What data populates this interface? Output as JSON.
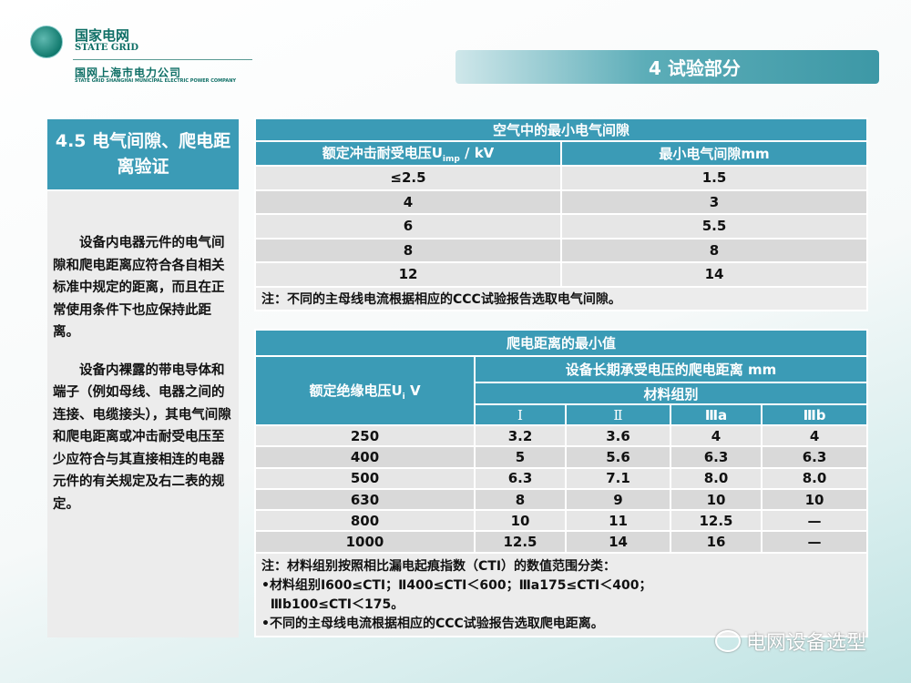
{
  "header": {
    "brand_cn": "国家电网",
    "brand_en": "STATE GRID",
    "company_cn": "国网上海市电力公司",
    "company_en": "STATE GRID SHANGHAI MUNICIPAL ELECTRIC POWER COMPANY",
    "section": "4 试验部分"
  },
  "left": {
    "title": "4.5 电气间隙、爬电距离验证",
    "paragraphs": [
      "设备内电器元件的电气间隙和爬电距离应符合各自相关标准中规定的距离，而且在正常使用条件下也应保持此距离。",
      "设备内裸露的带电导体和端子（例如母线、电器之间的连接、电缆接头），其电气间隙和爬电距离或冲击耐受电压至少应符合与其直接相连的电器元件的有关规定及右二表的规定。"
    ]
  },
  "table1": {
    "title": "空气中的最小电气间隙",
    "col1": "额定冲击耐受电压U",
    "col1_sub": "imp",
    "col1_unit": " / kV",
    "col2": "最小电气间隙mm",
    "rows": [
      [
        "≤2.5",
        "1.5"
      ],
      [
        "4",
        "3"
      ],
      [
        "6",
        "5.5"
      ],
      [
        "8",
        "8"
      ],
      [
        "12",
        "14"
      ]
    ],
    "note": "注：不同的主母线电流根据相应的CCC试验报告选取电气间隙。"
  },
  "table2": {
    "title": "爬电距离的最小值",
    "col1": "额定绝缘电压U",
    "col1_sub": "i",
    "col1_unit": " V",
    "group_header": "设备长期承受电压的爬电距离  mm",
    "material_header": "材料组别",
    "materials": [
      "Ⅰ",
      "Ⅱ",
      "Ⅲa",
      "Ⅲb"
    ],
    "rows": [
      [
        "250",
        "3.2",
        "3.6",
        "4",
        "4"
      ],
      [
        "400",
        "5",
        "5.6",
        "6.3",
        "6.3"
      ],
      [
        "500",
        "6.3",
        "7.1",
        "8.0",
        "8.0"
      ],
      [
        "630",
        "8",
        "9",
        "10",
        "10"
      ],
      [
        "800",
        "10",
        "11",
        "12.5",
        "—"
      ],
      [
        "1000",
        "12.5",
        "14",
        "16",
        "—"
      ]
    ],
    "notes": [
      "注：材料组别按照相比漏电起痕指数（CTI）的数值范围分类：",
      "•材料组别Ⅰ600≤CTI；Ⅱ400≤CTI＜600；Ⅲa175≤CTI＜400；",
      "  Ⅲb100≤CTI＜175。",
      "•不同的主母线电流根据相应的CCC试验报告选取爬电距离。"
    ]
  },
  "watermark": "电网设备选型"
}
